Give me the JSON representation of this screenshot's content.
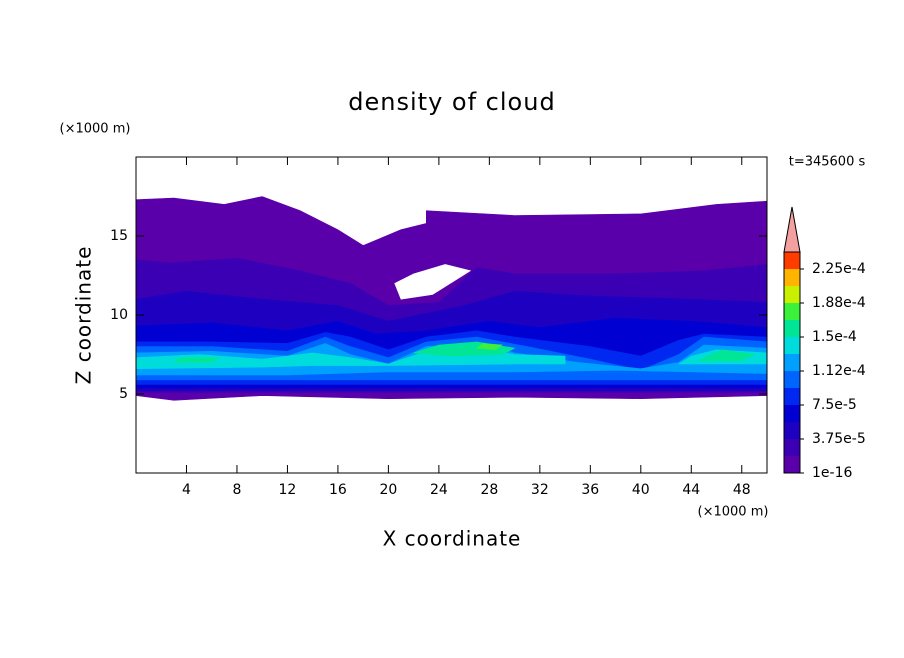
{
  "chart_data": {
    "type": "contour",
    "title": "density of cloud",
    "x_label": "X coordinate",
    "y_label": "Z coordinate",
    "x_unit": "(×1000 m)",
    "y_unit": "(×1000 m)",
    "time_label": "t=345600 s",
    "xlim": [
      0,
      50
    ],
    "ylim": [
      0,
      20
    ],
    "xticks": [
      4,
      8,
      12,
      16,
      20,
      24,
      28,
      32,
      36,
      40,
      44,
      48
    ],
    "yticks": [
      5,
      10,
      15
    ],
    "colorbar": {
      "levels": [
        1e-16,
        1.875e-05,
        3.75e-05,
        5.625e-05,
        7.5e-05,
        9.375e-05,
        0.0001125,
        0.00013125,
        0.00015,
        0.00016875,
        0.0001875,
        0.00020625,
        0.000225,
        0.00024375
      ],
      "colors": [
        "#5a00aa",
        "#3c00b4",
        "#1e00c0",
        "#0000d2",
        "#0028f0",
        "#0064ff",
        "#00a0ff",
        "#00dcdc",
        "#00e696",
        "#3cf03c",
        "#c8f000",
        "#ffb400",
        "#ff3c00"
      ],
      "extend_color": "#f4a0a0",
      "ticks": [
        {
          "value": 1e-16,
          "label": "1e-16"
        },
        {
          "value": 3.75e-05,
          "label": "3.75e-5"
        },
        {
          "value": 7.5e-05,
          "label": "7.5e-5"
        },
        {
          "value": 0.0001125,
          "label": "1.12e-4"
        },
        {
          "value": 0.00015,
          "label": "1.5e-4"
        },
        {
          "value": 0.0001875,
          "label": "1.88e-4"
        },
        {
          "value": 0.000225,
          "label": "2.25e-4"
        }
      ]
    },
    "regions": [
      {
        "level": 0,
        "points": [
          [
            0,
            4.9
          ],
          [
            3,
            4.6
          ],
          [
            10,
            4.9
          ],
          [
            20,
            4.7
          ],
          [
            30,
            4.8
          ],
          [
            40,
            4.7
          ],
          [
            50,
            4.9
          ],
          [
            50,
            17.2
          ],
          [
            46,
            17
          ],
          [
            40,
            16.4
          ],
          [
            30,
            16.3
          ],
          [
            23,
            16.6
          ],
          [
            23,
            15.8
          ],
          [
            21,
            15.4
          ],
          [
            18,
            14.4
          ],
          [
            16,
            15.4
          ],
          [
            13,
            16.6
          ],
          [
            10,
            17.5
          ],
          [
            7,
            17
          ],
          [
            3,
            17.4
          ],
          [
            0,
            17.3
          ]
        ]
      },
      {
        "level": -1,
        "points": [
          [
            21,
            11
          ],
          [
            23.5,
            11.3
          ],
          [
            26.5,
            12.8
          ],
          [
            24.5,
            13.2
          ],
          [
            22,
            12.6
          ],
          [
            20.5,
            12
          ]
        ]
      },
      {
        "level": 1,
        "points": [
          [
            0,
            5.1
          ],
          [
            50,
            5.1
          ],
          [
            50,
            13.2
          ],
          [
            45,
            12.8
          ],
          [
            38,
            12.6
          ],
          [
            30,
            12.6
          ],
          [
            27,
            13
          ],
          [
            24,
            10.8
          ],
          [
            20,
            10.6
          ],
          [
            17,
            12
          ],
          [
            13,
            12.8
          ],
          [
            8,
            13.6
          ],
          [
            3,
            13.3
          ],
          [
            0,
            13.5
          ]
        ]
      },
      {
        "level": 2,
        "points": [
          [
            0,
            5.2
          ],
          [
            50,
            5.2
          ],
          [
            50,
            10.8
          ],
          [
            44,
            11
          ],
          [
            36,
            11.2
          ],
          [
            30,
            11.5
          ],
          [
            26,
            10.6
          ],
          [
            20,
            9.6
          ],
          [
            16,
            10.6
          ],
          [
            10,
            11
          ],
          [
            4,
            11.5
          ],
          [
            0,
            11
          ]
        ]
      },
      {
        "level": 3,
        "points": [
          [
            0,
            5.4
          ],
          [
            50,
            5.4
          ],
          [
            50,
            9.2
          ],
          [
            44,
            9.6
          ],
          [
            38,
            9.8
          ],
          [
            32,
            9.2
          ],
          [
            28,
            9.6
          ],
          [
            23,
            9
          ],
          [
            19,
            8.8
          ],
          [
            16,
            9.6
          ],
          [
            12,
            9
          ],
          [
            6,
            9.5
          ],
          [
            0,
            9.3
          ]
        ]
      },
      {
        "level": 4,
        "points": [
          [
            0,
            5.6
          ],
          [
            50,
            5.6
          ],
          [
            50,
            8.6
          ],
          [
            45,
            8.8
          ],
          [
            43,
            8.4
          ],
          [
            40,
            7.4
          ],
          [
            36,
            8
          ],
          [
            30,
            8.6
          ],
          [
            27,
            9
          ],
          [
            23,
            8.6
          ],
          [
            20,
            7.8
          ],
          [
            17,
            8.6
          ],
          [
            15,
            8.9
          ],
          [
            12,
            8.2
          ],
          [
            6,
            8.3
          ],
          [
            0,
            8.3
          ]
        ]
      },
      {
        "level": 5,
        "points": [
          [
            0,
            5.9
          ],
          [
            50,
            5.9
          ],
          [
            50,
            8.3
          ],
          [
            45,
            8.6
          ],
          [
            43,
            7.5
          ],
          [
            40,
            6.5
          ],
          [
            36,
            7.2
          ],
          [
            31,
            8
          ],
          [
            27,
            8.6
          ],
          [
            23,
            8.3
          ],
          [
            20,
            7.3
          ],
          [
            17,
            8
          ],
          [
            15,
            8.6
          ],
          [
            12,
            7.7
          ],
          [
            6,
            8
          ],
          [
            0,
            8
          ]
        ]
      },
      {
        "level": 6,
        "points": [
          [
            0,
            6.2
          ],
          [
            12,
            6.2
          ],
          [
            20,
            6.4
          ],
          [
            30,
            6.4
          ],
          [
            38,
            6.5
          ],
          [
            50,
            6.3
          ],
          [
            50,
            7.9
          ],
          [
            45,
            8.1
          ],
          [
            43,
            7
          ],
          [
            40,
            6.6
          ],
          [
            35,
            7
          ],
          [
            30,
            7.6
          ],
          [
            27,
            8.2
          ],
          [
            23,
            8
          ],
          [
            20,
            6.9
          ],
          [
            17,
            7.5
          ],
          [
            15,
            8.2
          ],
          [
            12,
            7.4
          ],
          [
            6,
            7.7
          ],
          [
            0,
            7.6
          ]
        ]
      },
      {
        "level": 7,
        "points": [
          [
            0,
            6.6
          ],
          [
            10,
            6.7
          ],
          [
            14,
            6.8
          ],
          [
            20,
            6.8
          ],
          [
            30,
            6.9
          ],
          [
            34,
            6.9
          ],
          [
            34,
            7.4
          ],
          [
            30,
            7.5
          ],
          [
            27,
            7.9
          ],
          [
            23,
            7.7
          ],
          [
            20,
            6.9
          ],
          [
            17,
            7.3
          ],
          [
            14,
            7.6
          ],
          [
            10,
            7.2
          ],
          [
            5,
            7.5
          ],
          [
            0,
            7.3
          ]
        ]
      },
      {
        "level": 7,
        "points": [
          [
            43,
            6.9
          ],
          [
            50,
            6.9
          ],
          [
            50,
            7.6
          ],
          [
            46,
            7.8
          ],
          [
            44,
            7.4
          ]
        ]
      },
      {
        "level": 8,
        "points": [
          [
            22,
            7.6
          ],
          [
            25,
            7.4
          ],
          [
            29,
            7.5
          ],
          [
            30,
            7.9
          ],
          [
            27,
            8.3
          ],
          [
            24,
            8.1
          ]
        ]
      },
      {
        "level": 8,
        "points": [
          [
            44.5,
            7.1
          ],
          [
            48,
            7.1
          ],
          [
            49,
            7.5
          ],
          [
            46.5,
            7.8
          ]
        ]
      },
      {
        "level": 8,
        "points": [
          [
            3,
            7
          ],
          [
            6,
            7
          ],
          [
            6.5,
            7.3
          ],
          [
            3.5,
            7.3
          ]
        ]
      },
      {
        "level": 9,
        "points": [
          [
            27,
            7.9
          ],
          [
            28.5,
            7.8
          ],
          [
            29,
            8.1
          ],
          [
            27.5,
            8.2
          ]
        ]
      }
    ]
  }
}
